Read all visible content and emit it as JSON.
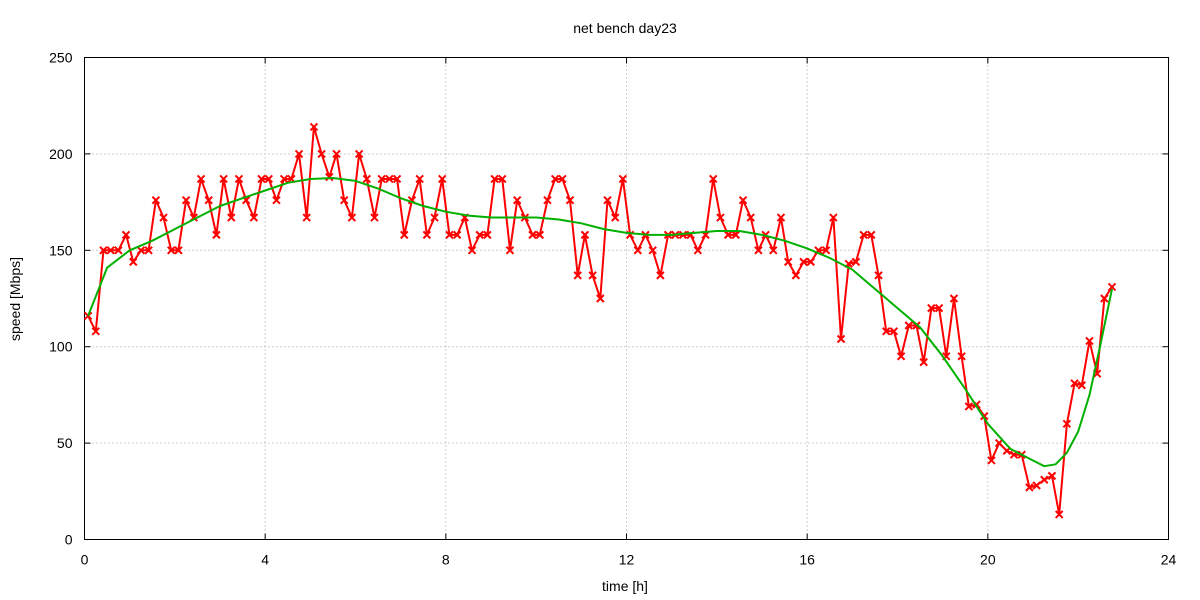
{
  "chart_data": {
    "type": "line",
    "title": "net bench day23",
    "xlabel": "time [h]",
    "ylabel": "speed [Mbps]",
    "xlim": [
      0,
      24
    ],
    "ylim": [
      0,
      250
    ],
    "xticks": [
      0,
      4,
      8,
      12,
      16,
      20,
      24
    ],
    "yticks": [
      0,
      50,
      100,
      150,
      200,
      250
    ],
    "grid": true,
    "legend": "none",
    "series": [
      {
        "color": "#ff0000",
        "marker": "x",
        "points": [
          [
            0.08,
            116
          ],
          [
            0.25,
            108
          ],
          [
            0.42,
            150
          ],
          [
            0.58,
            150
          ],
          [
            0.75,
            150
          ],
          [
            0.92,
            158
          ],
          [
            1.08,
            144
          ],
          [
            1.25,
            150
          ],
          [
            1.42,
            150
          ],
          [
            1.58,
            176
          ],
          [
            1.75,
            167
          ],
          [
            1.92,
            150
          ],
          [
            2.08,
            150
          ],
          [
            2.25,
            176
          ],
          [
            2.42,
            167
          ],
          [
            2.58,
            187
          ],
          [
            2.75,
            176
          ],
          [
            2.92,
            158
          ],
          [
            3.08,
            187
          ],
          [
            3.25,
            167
          ],
          [
            3.42,
            187
          ],
          [
            3.58,
            176
          ],
          [
            3.75,
            167
          ],
          [
            3.92,
            187
          ],
          [
            4.08,
            187
          ],
          [
            4.25,
            176
          ],
          [
            4.42,
            187
          ],
          [
            4.58,
            187
          ],
          [
            4.75,
            200
          ],
          [
            4.92,
            167
          ],
          [
            5.08,
            214
          ],
          [
            5.25,
            200
          ],
          [
            5.42,
            188
          ],
          [
            5.58,
            200
          ],
          [
            5.75,
            176
          ],
          [
            5.92,
            167
          ],
          [
            6.08,
            200
          ],
          [
            6.25,
            187
          ],
          [
            6.42,
            167
          ],
          [
            6.58,
            187
          ],
          [
            6.75,
            187
          ],
          [
            6.92,
            187
          ],
          [
            7.08,
            158
          ],
          [
            7.25,
            176
          ],
          [
            7.42,
            187
          ],
          [
            7.58,
            158
          ],
          [
            7.75,
            167
          ],
          [
            7.92,
            187
          ],
          [
            8.08,
            158
          ],
          [
            8.25,
            158
          ],
          [
            8.42,
            167
          ],
          [
            8.58,
            150
          ],
          [
            8.75,
            158
          ],
          [
            8.92,
            158
          ],
          [
            9.08,
            187
          ],
          [
            9.25,
            187
          ],
          [
            9.42,
            150
          ],
          [
            9.58,
            176
          ],
          [
            9.75,
            167
          ],
          [
            9.92,
            158
          ],
          [
            10.08,
            158
          ],
          [
            10.25,
            176
          ],
          [
            10.42,
            187
          ],
          [
            10.58,
            187
          ],
          [
            10.75,
            176
          ],
          [
            10.92,
            137
          ],
          [
            11.08,
            158
          ],
          [
            11.25,
            137
          ],
          [
            11.42,
            125
          ],
          [
            11.58,
            176
          ],
          [
            11.75,
            167
          ],
          [
            11.92,
            187
          ],
          [
            12.08,
            158
          ],
          [
            12.25,
            150
          ],
          [
            12.42,
            158
          ],
          [
            12.58,
            150
          ],
          [
            12.75,
            137
          ],
          [
            12.92,
            158
          ],
          [
            13.08,
            158
          ],
          [
            13.25,
            158
          ],
          [
            13.42,
            158
          ],
          [
            13.58,
            150
          ],
          [
            13.75,
            158
          ],
          [
            13.92,
            187
          ],
          [
            14.08,
            167
          ],
          [
            14.25,
            158
          ],
          [
            14.42,
            158
          ],
          [
            14.58,
            176
          ],
          [
            14.75,
            167
          ],
          [
            14.92,
            150
          ],
          [
            15.08,
            158
          ],
          [
            15.25,
            150
          ],
          [
            15.42,
            167
          ],
          [
            15.58,
            144
          ],
          [
            15.75,
            137
          ],
          [
            15.92,
            144
          ],
          [
            16.08,
            144
          ],
          [
            16.25,
            150
          ],
          [
            16.42,
            150
          ],
          [
            16.58,
            167
          ],
          [
            16.75,
            104
          ],
          [
            16.92,
            143
          ],
          [
            17.08,
            144
          ],
          [
            17.25,
            158
          ],
          [
            17.42,
            158
          ],
          [
            17.58,
            137
          ],
          [
            17.75,
            108
          ],
          [
            17.92,
            108
          ],
          [
            18.08,
            95
          ],
          [
            18.25,
            111
          ],
          [
            18.42,
            111
          ],
          [
            18.58,
            92
          ],
          [
            18.75,
            120
          ],
          [
            18.92,
            120
          ],
          [
            19.08,
            95
          ],
          [
            19.25,
            125
          ],
          [
            19.42,
            95
          ],
          [
            19.58,
            69
          ],
          [
            19.75,
            70
          ],
          [
            19.92,
            64
          ],
          [
            20.08,
            41
          ],
          [
            20.25,
            50
          ],
          [
            20.42,
            46
          ],
          [
            20.58,
            44
          ],
          [
            20.75,
            44
          ],
          [
            20.92,
            27
          ],
          [
            21.08,
            28
          ],
          [
            21.25,
            31
          ],
          [
            21.42,
            33
          ],
          [
            21.58,
            13
          ],
          [
            21.75,
            60
          ],
          [
            21.92,
            81
          ],
          [
            22.08,
            80
          ],
          [
            22.25,
            103
          ],
          [
            22.42,
            86
          ],
          [
            22.58,
            125
          ],
          [
            22.75,
            131
          ]
        ]
      },
      {
        "color": "#00b000",
        "marker": "none",
        "points": [
          [
            0.08,
            116
          ],
          [
            0.5,
            141
          ],
          [
            1,
            150
          ],
          [
            1.5,
            155
          ],
          [
            2,
            161
          ],
          [
            2.5,
            167
          ],
          [
            3,
            173
          ],
          [
            3.5,
            177
          ],
          [
            4,
            181
          ],
          [
            4.5,
            185
          ],
          [
            5,
            187
          ],
          [
            5.5,
            187.5
          ],
          [
            6,
            186
          ],
          [
            6.5,
            182
          ],
          [
            7,
            177
          ],
          [
            7.5,
            173
          ],
          [
            8,
            170
          ],
          [
            8.5,
            168
          ],
          [
            9,
            167
          ],
          [
            9.5,
            167
          ],
          [
            10,
            167
          ],
          [
            10.5,
            166
          ],
          [
            11,
            164
          ],
          [
            11.5,
            161
          ],
          [
            12,
            159
          ],
          [
            12.5,
            158
          ],
          [
            13,
            158
          ],
          [
            13.5,
            159
          ],
          [
            14,
            160
          ],
          [
            14.5,
            160
          ],
          [
            15,
            158
          ],
          [
            15.5,
            155
          ],
          [
            16,
            151
          ],
          [
            16.5,
            146
          ],
          [
            17,
            140
          ],
          [
            17.5,
            130
          ],
          [
            18,
            120
          ],
          [
            18.5,
            110
          ],
          [
            19,
            95
          ],
          [
            19.5,
            78
          ],
          [
            20,
            60
          ],
          [
            20.5,
            47
          ],
          [
            21,
            41
          ],
          [
            21.25,
            38
          ],
          [
            21.5,
            39
          ],
          [
            21.75,
            45
          ],
          [
            22,
            56
          ],
          [
            22.25,
            75
          ],
          [
            22.5,
            102
          ],
          [
            22.75,
            130
          ]
        ]
      }
    ]
  }
}
